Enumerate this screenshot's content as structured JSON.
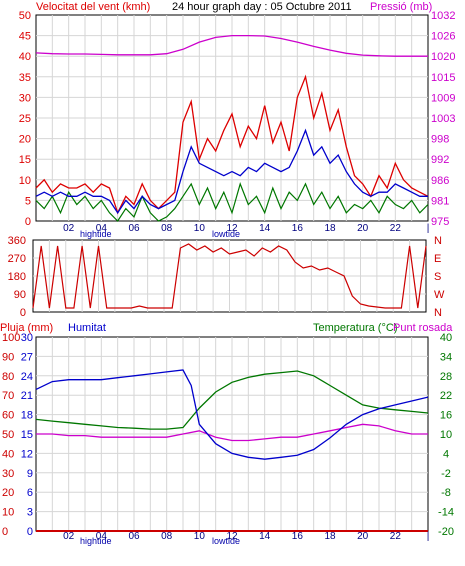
{
  "header": {
    "title": "24 hour graph day : 05 Octubre 2011",
    "wind_label": "Velocitat del vent (kmh)",
    "pressure_label": "Pressió (mb)",
    "rain_label": "Pluja (mm)",
    "humidity_label": "Humitat",
    "temp_label": "Temperatura (°C)",
    "dew_label": "Punt rosada"
  },
  "x_axis": {
    "time_ticks": [
      "02",
      "04",
      "06",
      "08",
      "10",
      "12",
      "14",
      "16",
      "18",
      "20",
      "22",
      "|"
    ],
    "tide_labels": {
      "hightide": "hightide",
      "lowtide": "lowtide"
    }
  },
  "colors": {
    "wind_gust": "#dd0000",
    "wind_avg": "#0000cc",
    "wind_green": "#007700",
    "pressure": "#cc00cc",
    "direction": "#cc0000",
    "humidity": "#0000cc",
    "temperature": "#007700",
    "dewpoint": "#cc00cc",
    "rain": "#cc0000"
  },
  "chart_data": [
    {
      "type": "line",
      "title": "24 hour graph day : 05 Octubre 2011",
      "y_left_label": "Velocitat del vent (kmh)",
      "y_left_ticks": [
        "0",
        "5",
        "10",
        "15",
        "20",
        "25",
        "30",
        "35",
        "40",
        "45",
        "50"
      ],
      "y_left_range": [
        0,
        50
      ],
      "y_right_label": "Pressió (mb)",
      "y_right_ticks": [
        "975",
        "981",
        "986",
        "992",
        "998",
        "1003",
        "1009",
        "1015",
        "1020",
        "1026",
        "1032"
      ],
      "y_right_range": [
        975,
        1032
      ],
      "x_ticks": [
        "02",
        "04",
        "06",
        "08",
        "10",
        "12",
        "14",
        "16",
        "18",
        "20",
        "22",
        "|"
      ],
      "x_range_hours": [
        0,
        24
      ],
      "series": [
        {
          "name": "Pressió (mb)",
          "axis": "right",
          "x": [
            0,
            1,
            2,
            3,
            4,
            5,
            6,
            7,
            8,
            9,
            10,
            11,
            12,
            13,
            14,
            15,
            16,
            17,
            18,
            19,
            20,
            21,
            22,
            23,
            24
          ],
          "values": [
            1021.5,
            1021.3,
            1021.2,
            1021.2,
            1021.1,
            1021,
            1021,
            1021,
            1021.3,
            1022.5,
            1024.5,
            1025.8,
            1026.3,
            1026.3,
            1026.2,
            1025.5,
            1024.5,
            1023.3,
            1022.3,
            1021.4,
            1020.9,
            1020.7,
            1020.6,
            1020.6,
            1020.6
          ]
        },
        {
          "name": "Velocitat del vent (kmh)",
          "axis": "left",
          "x": [
            0,
            0.5,
            1,
            1.5,
            2,
            2.5,
            3,
            3.5,
            4,
            4.5,
            5,
            5.5,
            6,
            6.5,
            7,
            7.5,
            8,
            8.5,
            9,
            9.5,
            10,
            10.5,
            11,
            11.5,
            12,
            12.5,
            13,
            13.5,
            14,
            14.5,
            15,
            15.5,
            16,
            16.5,
            17,
            17.5,
            18,
            18.5,
            19,
            19.5,
            20,
            20.5,
            21,
            21.5,
            22,
            22.5,
            23,
            23.5,
            24
          ],
          "values": [
            8,
            10,
            7,
            9,
            8,
            8,
            9,
            7,
            9,
            8,
            2,
            6,
            4,
            9,
            5,
            3,
            5,
            7,
            24,
            29,
            15,
            20,
            17,
            22,
            26,
            18,
            23,
            20,
            28,
            19,
            24,
            17,
            30,
            35,
            25,
            31,
            22,
            27,
            18,
            11,
            9,
            6,
            11,
            8,
            14,
            10,
            8,
            7,
            6
          ]
        },
        {
          "name": "",
          "axis": "left",
          "x": [
            0,
            0.5,
            1,
            1.5,
            2,
            2.5,
            3,
            3.5,
            4,
            4.5,
            5,
            5.5,
            6,
            6.5,
            7,
            7.5,
            8,
            8.5,
            9,
            9.5,
            10,
            10.5,
            11,
            11.5,
            12,
            12.5,
            13,
            13.5,
            14,
            14.5,
            15,
            15.5,
            16,
            16.5,
            17,
            17.5,
            18,
            18.5,
            19,
            19.5,
            20,
            20.5,
            21,
            21.5,
            22,
            22.5,
            23,
            23.5,
            24
          ],
          "values": [
            6,
            7,
            6,
            7,
            6,
            6,
            7,
            6,
            6,
            5,
            2,
            5,
            3,
            6,
            4,
            3,
            4,
            5,
            12,
            18,
            14,
            13,
            12,
            11,
            12,
            11,
            13,
            12,
            14,
            13,
            12,
            13,
            17,
            22,
            16,
            18,
            14,
            16,
            12,
            9,
            7,
            6,
            7,
            7,
            9,
            8,
            7,
            6,
            6
          ]
        },
        {
          "name": "",
          "axis": "left",
          "x": [
            0,
            0.5,
            1,
            1.5,
            2,
            2.5,
            3,
            3.5,
            4,
            4.5,
            5,
            5.5,
            6,
            6.5,
            7,
            7.5,
            8,
            8.5,
            9,
            9.5,
            10,
            10.5,
            11,
            11.5,
            12,
            12.5,
            13,
            13.5,
            14,
            14.5,
            15,
            15.5,
            16,
            16.5,
            17,
            17.5,
            18,
            18.5,
            19,
            19.5,
            20,
            20.5,
            21,
            21.5,
            22,
            22.5,
            23,
            23.5,
            24
          ],
          "values": [
            5,
            3,
            6,
            2,
            7,
            4,
            6,
            3,
            5,
            2,
            0,
            3,
            1,
            6,
            2,
            0,
            1,
            3,
            6,
            9,
            4,
            8,
            3,
            7,
            2,
            9,
            4,
            6,
            2,
            8,
            3,
            7,
            5,
            9,
            4,
            7,
            3,
            6,
            2,
            4,
            3,
            5,
            2,
            6,
            4,
            3,
            5,
            2,
            4
          ]
        }
      ]
    },
    {
      "type": "line",
      "title": "",
      "y_left_ticks": [
        "0",
        "90",
        "180",
        "270",
        "360"
      ],
      "y_left_range": [
        0,
        360
      ],
      "y_right_ticks": [
        "N",
        "W",
        "S",
        "E",
        "N"
      ],
      "series": [
        {
          "name": "",
          "axis": "left",
          "x": [
            0,
            0.5,
            1,
            1.5,
            2,
            2.5,
            3,
            3.5,
            4,
            4.5,
            5,
            5.5,
            6,
            6.5,
            7,
            7.5,
            8,
            8.5,
            9,
            9.5,
            10,
            10.5,
            11,
            11.5,
            12,
            12.5,
            13,
            13.5,
            14,
            14.5,
            15,
            15.5,
            16,
            16.5,
            17,
            17.5,
            18,
            18.5,
            19,
            19.5,
            20,
            20.5,
            21,
            21.5,
            22,
            22.5,
            23,
            23.5,
            24
          ],
          "values": [
            20,
            330,
            20,
            330,
            20,
            20,
            330,
            20,
            330,
            20,
            20,
            20,
            20,
            30,
            20,
            20,
            20,
            20,
            320,
            340,
            310,
            330,
            300,
            320,
            290,
            300,
            310,
            280,
            320,
            300,
            330,
            310,
            250,
            220,
            230,
            210,
            220,
            200,
            180,
            80,
            40,
            30,
            25,
            20,
            20,
            20,
            330,
            20,
            330
          ]
        }
      ]
    },
    {
      "type": "line",
      "title": "",
      "y_left_label": "Pluja (mm)",
      "y_left_ticks": [
        "0",
        "10",
        "20",
        "30",
        "40",
        "50",
        "60",
        "70",
        "80",
        "90",
        "100"
      ],
      "y_left_range": [
        0,
        100
      ],
      "y_left2_label": "Humitat",
      "y_left2_ticks": [
        "0",
        "3",
        "6",
        "9",
        "12",
        "15",
        "18",
        "21",
        "24",
        "27",
        "30"
      ],
      "y_right_label": "Temperatura (°C)",
      "y_right_label2": "Punt rosada",
      "y_right_ticks": [
        "-20",
        "-14",
        "-8",
        "-2",
        "4",
        "10",
        "16",
        "22",
        "28",
        "34",
        "40"
      ],
      "y_right_range": [
        -20,
        40
      ],
      "x_ticks": [
        "02",
        "04",
        "06",
        "08",
        "10",
        "12",
        "14",
        "16",
        "18",
        "20",
        "22",
        "|"
      ],
      "series": [
        {
          "name": "Humitat",
          "axis": "left",
          "x": [
            0,
            1,
            2,
            3,
            4,
            5,
            6,
            7,
            8,
            9,
            9.5,
            10,
            11,
            12,
            13,
            14,
            15,
            16,
            17,
            18,
            19,
            20,
            21,
            22,
            23,
            24
          ],
          "values": [
            73,
            77,
            78,
            78,
            78,
            79,
            80,
            81,
            82,
            83,
            75,
            55,
            45,
            40,
            38,
            37,
            38,
            39,
            42,
            48,
            55,
            60,
            63,
            65,
            67,
            69
          ]
        },
        {
          "name": "Temperatura (°C)",
          "axis": "right",
          "x": [
            0,
            1,
            2,
            3,
            4,
            5,
            6,
            7,
            8,
            9,
            10,
            11,
            12,
            13,
            14,
            15,
            16,
            17,
            18,
            19,
            20,
            21,
            22,
            23,
            24
          ],
          "values": [
            14.5,
            14,
            13.5,
            13,
            12.5,
            12,
            11.8,
            11.5,
            11.5,
            12,
            18,
            23,
            26,
            27.5,
            28.5,
            29,
            29.5,
            28,
            25,
            22,
            19,
            18,
            17.5,
            17,
            16.5
          ]
        },
        {
          "name": "Punt rosada",
          "axis": "right",
          "x": [
            0,
            1,
            2,
            3,
            4,
            5,
            6,
            7,
            8,
            9,
            10,
            11,
            12,
            13,
            14,
            15,
            16,
            17,
            18,
            19,
            20,
            21,
            22,
            23,
            24
          ],
          "values": [
            10,
            10,
            9.5,
            9.5,
            9,
            9,
            9,
            9,
            9,
            10,
            11,
            9,
            8,
            8,
            8.5,
            9,
            9,
            10,
            11,
            12,
            13,
            12.5,
            11,
            10,
            10
          ]
        },
        {
          "name": "Pluja (mm)",
          "axis": "left",
          "x": [
            0,
            24
          ],
          "values": [
            0,
            0
          ]
        }
      ]
    }
  ]
}
